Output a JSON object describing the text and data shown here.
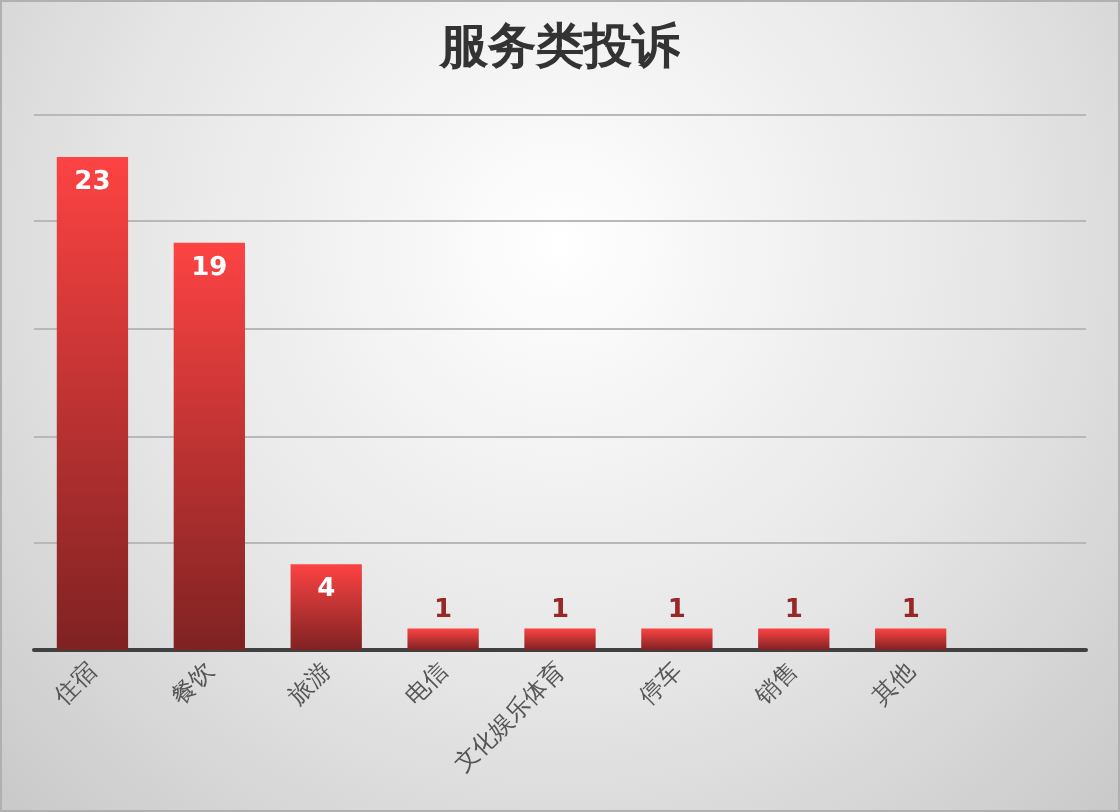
{
  "chart_data": {
    "type": "bar",
    "title": "服务类投诉",
    "categories": [
      "住宿",
      "餐饮",
      "旅游",
      "电信",
      "文化娱乐体育",
      "停车",
      "销售",
      "其他",
      null
    ],
    "values": [
      23,
      19,
      4,
      1,
      1,
      1,
      1,
      1,
      null
    ],
    "color": "#fd4343",
    "ylim": [
      0,
      25
    ],
    "yticks": [
      {
        "value": 0,
        "label": null
      },
      {
        "value": 5,
        "label": null
      },
      {
        "value": 10,
        "label": null
      },
      {
        "value": 15,
        "label": null
      },
      {
        "value": 20,
        "label": null
      },
      {
        "value": 25,
        "label": null
      }
    ],
    "grid": "y",
    "data_labels": true,
    "tick_labels": "x"
  }
}
